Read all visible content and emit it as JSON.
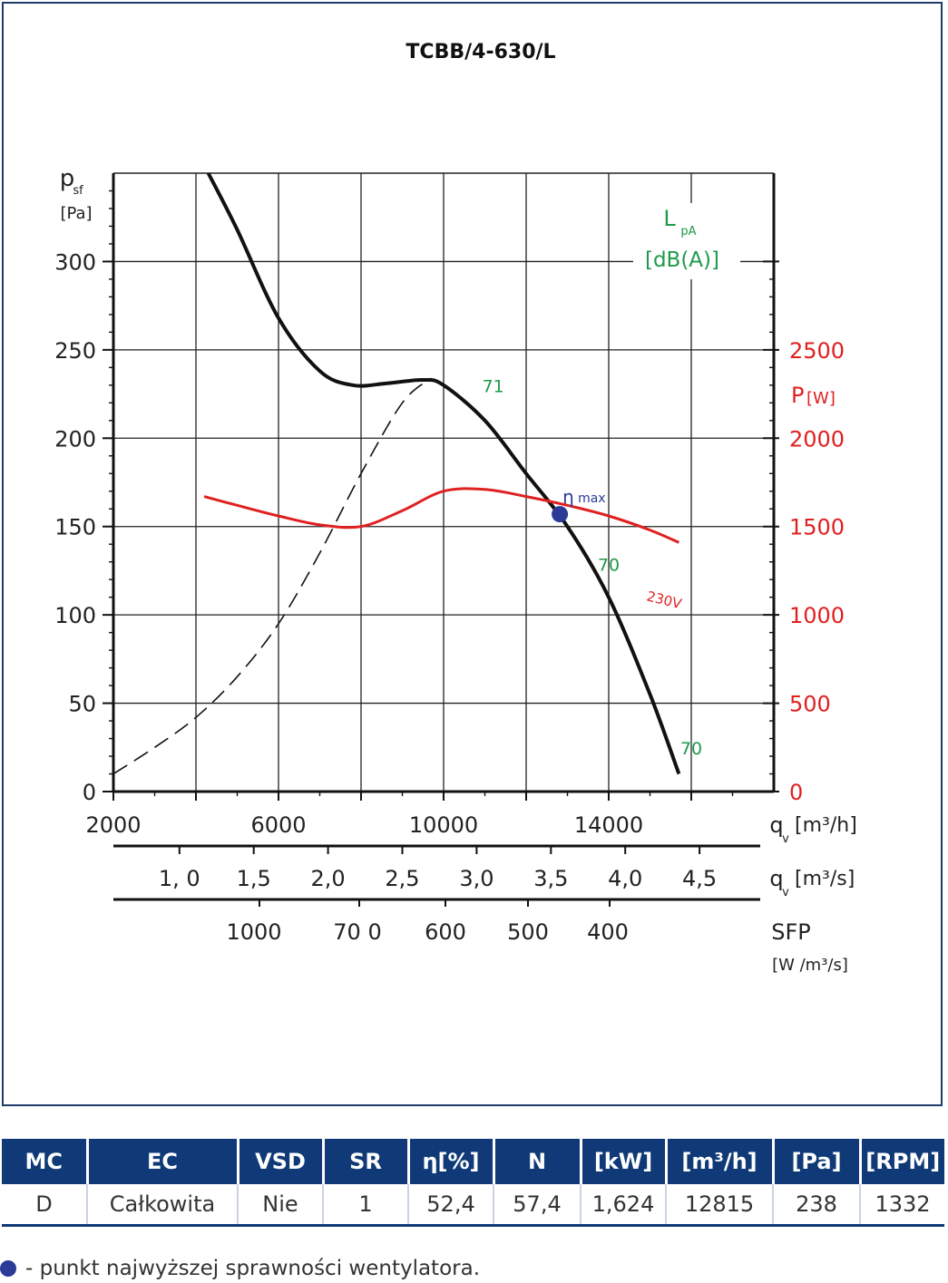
{
  "chart_data": {
    "type": "line",
    "title": "TCBB/4-630/L",
    "ylabel_main": "p",
    "ylabel_sub": "sf",
    "ylabel_unit": "[Pa]",
    "ylim": [
      0,
      350
    ],
    "yticks": [
      "0",
      "50",
      "100",
      "150",
      "200",
      "250",
      "300"
    ],
    "ylabel_right": "P",
    "ylabel_right_unit": "[W]",
    "ylim_right": [
      0,
      3500
    ],
    "yticks_right": [
      "0",
      "500",
      "1000",
      "1500",
      "2000",
      "2500"
    ],
    "noise_label_main": "L",
    "noise_label_sub": "pA",
    "noise_unit": "[dB(A)]",
    "xlim": [
      2000,
      18000
    ],
    "x_axis1": {
      "label_main": "q",
      "label_sub": "v",
      "label_unit": "[m³/h]",
      "ticks": [
        "2000",
        "6000",
        "10000",
        "14000"
      ]
    },
    "x_axis2": {
      "label_main": "q",
      "label_sub": "v",
      "label_unit": "[m³/s]",
      "ticks": [
        "1, 0",
        "1,5",
        "2,0",
        "2,5",
        "3,0",
        "3,5",
        "4,0",
        "4,5"
      ]
    },
    "x_axis3": {
      "label_main": "SFP",
      "label_unit": "[W /m³/s]",
      "ticks": [
        "1000",
        "70 0",
        "600",
        "500",
        "400"
      ]
    },
    "series": [
      {
        "key": "pressure",
        "color": "#111111",
        "x": [
          4300,
          5000,
          6000,
          7000,
          7800,
          8600,
          9500,
          10000,
          11000,
          12000,
          13000,
          14000,
          15000,
          15700
        ],
        "y": [
          350,
          318,
          268,
          238,
          230,
          231,
          233,
          230,
          210,
          180,
          150,
          110,
          55,
          10
        ]
      },
      {
        "key": "power",
        "name": "230V",
        "color": "#e02020",
        "x": [
          4200,
          5000,
          6000,
          7000,
          8000,
          9000,
          10000,
          11000,
          12000,
          13000,
          14000,
          15000,
          15700
        ],
        "y": [
          1670,
          1620,
          1560,
          1510,
          1500,
          1590,
          1700,
          1710,
          1670,
          1620,
          1560,
          1480,
          1410
        ]
      },
      {
        "key": "system",
        "dash": true,
        "color": "#111111",
        "x": [
          2000,
          3000,
          4000,
          5000,
          6000,
          7000,
          8000,
          9000,
          9700
        ],
        "y": [
          10,
          25,
          42,
          65,
          95,
          135,
          180,
          220,
          234
        ]
      }
    ],
    "eta_max": {
      "x": 12815,
      "y": 157,
      "label": "η",
      "label_sub": "max"
    },
    "noise_labels": [
      {
        "x": 11200,
        "y": 226,
        "text": "71"
      },
      {
        "x": 14000,
        "y": 125,
        "text": "70"
      },
      {
        "x": 16000,
        "y": 21,
        "text": "70"
      }
    ],
    "grid": true,
    "colors": {
      "frame": "#1f3b6b",
      "pressure": "#111111",
      "power": "#e02020",
      "noise": "#1e9a4a",
      "eta": "#2b3a97"
    }
  },
  "table": {
    "headers": [
      "MC",
      "EC",
      "VSD",
      "SR",
      "η[%]",
      "N",
      "[kW]",
      "[m³/h]",
      "[Pa]",
      "[RPM]"
    ],
    "row": [
      "D",
      "Całkowita",
      "Nie",
      "1",
      "52,4",
      "57,4",
      "1,624",
      "12815",
      "238",
      "1332"
    ]
  },
  "legend_note": "- punkt najwyższej sprawności wentylatora."
}
